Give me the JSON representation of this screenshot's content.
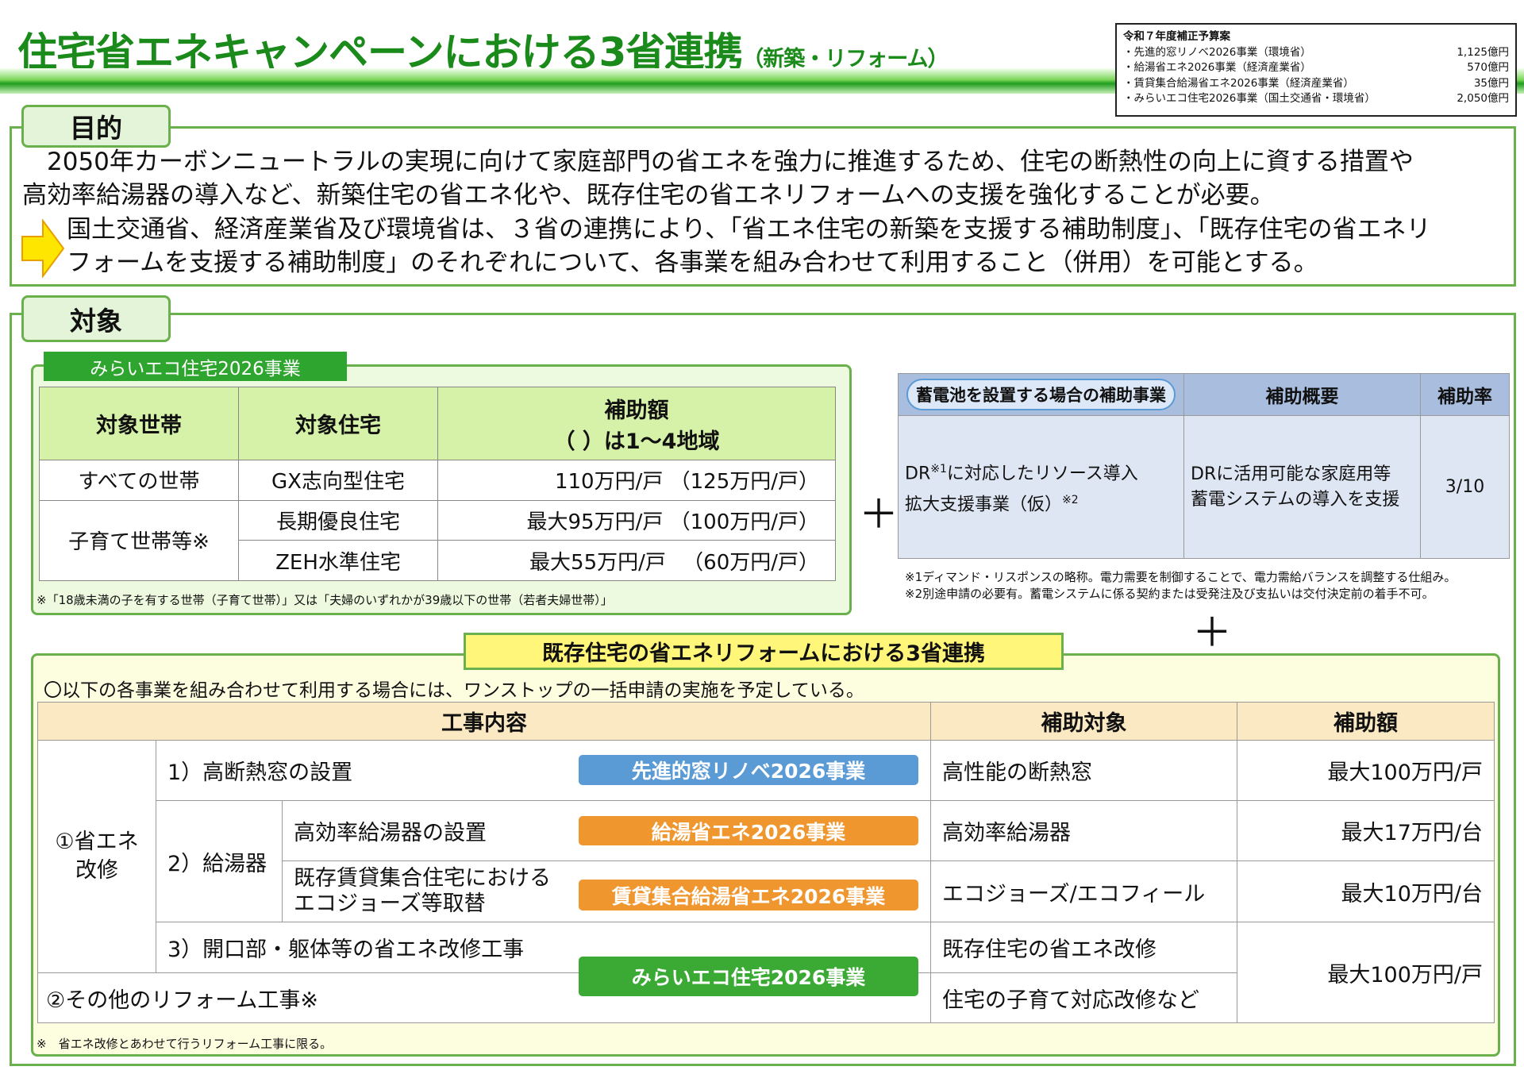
{
  "header": {
    "title": "住宅省エネキャンペーンにおける3省連携",
    "subtitle": "（新築・リフォーム）"
  },
  "budget": {
    "title": "令和７年度補正予算案",
    "items": [
      {
        "label": "・先進的窓リノベ2026事業（環境省）",
        "amount": "1,125億円"
      },
      {
        "label": "・給湯省エネ2026事業（経済産業省）",
        "amount": "570億円"
      },
      {
        "label": "・賃貸集合給湯省エネ2026事業（経済産業省）",
        "amount": "35億円"
      },
      {
        "label": "・みらいエコ住宅2026事業（国土交通省・環境省）",
        "amount": "2,050億円"
      }
    ]
  },
  "purpose": {
    "label": "目的",
    "lines": [
      "　2050年カーボンニュートラルの実現に向けて家庭部門の省エネを強力に推進するため、住宅の断熱性の向上に資する措置や",
      "高効率給湯器の導入など、新築住宅の省エネ化や、既存住宅の省エネリフォームへの支援を強化することが必要。",
      "国土交通省、経済産業省及び環境省は、３省の連携により、「省エネ住宅の新築を支援する補助制度」、「既存住宅の省エネリ",
      "フォームを支援する補助制度」のそれぞれについて、各事業を組み合わせて利用すること（併用）を可能とする。"
    ],
    "arrow_color": "#ffe600"
  },
  "target": {
    "label": "対象"
  },
  "mirai": {
    "label": "みらいエコ住宅2026事業",
    "headers": [
      "対象世帯",
      "対象住宅",
      "補助額",
      "（ ）は1～4地域"
    ],
    "rows": [
      {
        "household": "すべての世帯",
        "house": "GX志向型住宅",
        "amount": "110万円/戸 （125万円/戸）"
      },
      {
        "household": "子育て世帯等※",
        "house": "長期優良住宅",
        "amount": "最大95万円/戸 （100万円/戸）"
      },
      {
        "house": "ZEH水準住宅",
        "amount": "最大55万円/戸 　（60万円/戸）"
      }
    ],
    "note": "※「18歳未満の子を有する世帯（子育て世帯）」又は「夫婦のいずれかが39歳以下の世帯（若者夫婦世帯）」"
  },
  "plus": "＋",
  "battery": {
    "headers": [
      "蓄電池を設置する場合の補助事業",
      "補助概要",
      "補助率"
    ],
    "name_line1": "DR",
    "sup1": "※1",
    "name_line1b": "に対応したリソース導入",
    "name_line2": "拡大支援事業（仮）",
    "sup2": "※2",
    "summary": [
      "DRに活用可能な家庭用等",
      "蓄電システムの導入を支援"
    ],
    "rate": "3/10",
    "notes": [
      "※1ディマンド・リスポンスの略称。電力需要を制御することで、電力需給バランスを調整する仕組み。",
      "※2別途申請の必要有。蓄電システムに係る契約または受発注及び支払いは交付決定前の着手不可。"
    ]
  },
  "reform": {
    "title": "既存住宅の省エネリフォームにおける3省連携",
    "intro": "〇以下の各事業を組み合わせて利用する場合には、ワンストップの一括申請の実施を予定している。",
    "headers": [
      "工事内容",
      "補助対象",
      "補助額"
    ],
    "group1": "①省エネ\n改修",
    "item1": "1）高断熱窓の設置",
    "item2": "2）給湯器",
    "item2a": "高効率給湯器の設置",
    "item2b": "既存賃貸集合住宅における\nエコジョーズ等取替",
    "item3": "3）開口部・躯体等の省エネ改修工事",
    "group2": "②その他のリフォーム工事※",
    "badges": [
      {
        "label": "先進的窓リノベ2026事業",
        "color": "#5b9bd5"
      },
      {
        "label": "給湯省エネ2026事業",
        "color": "#f0962e"
      },
      {
        "label": "賃貸集合給湯省エネ2026事業",
        "color": "#f0962e"
      },
      {
        "label": "みらいエコ住宅2026事業",
        "color": "#3aaa35"
      }
    ],
    "targets": [
      "高性能の断熱窓",
      "高効率給湯器",
      "エコジョーズ/エコフィール",
      "既存住宅の省エネ改修",
      "住宅の子育て対応改修など"
    ],
    "amounts": [
      "最大100万円/戸",
      "最大17万円/台",
      "最大10万円/台",
      "最大100万円/戸"
    ],
    "note": "※　省エネ改修とあわせて行うリフォーム工事に限る。"
  }
}
